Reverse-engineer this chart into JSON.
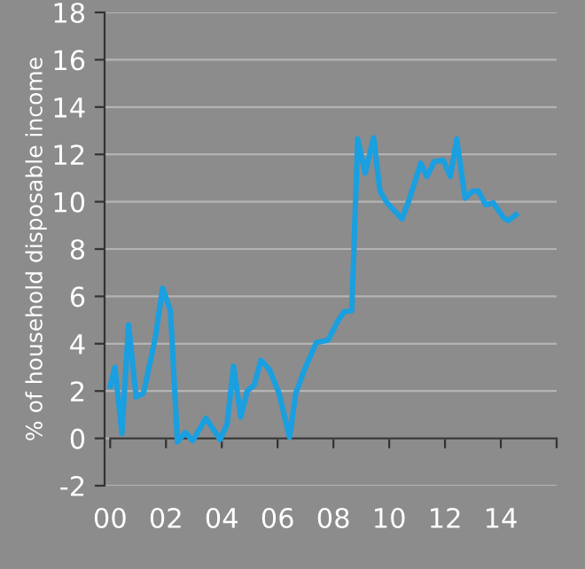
{
  "chart_data": {
    "type": "line",
    "ylabel": "% of household disposable income",
    "xlim": [
      -0.2,
      16
    ],
    "ylim": [
      -2,
      18
    ],
    "xticks": [
      {
        "value": 0,
        "label": "00"
      },
      {
        "value": 2,
        "label": "02"
      },
      {
        "value": 4,
        "label": "04"
      },
      {
        "value": 6,
        "label": "06"
      },
      {
        "value": 8,
        "label": "08"
      },
      {
        "value": 10,
        "label": "10"
      },
      {
        "value": 12,
        "label": "12"
      },
      {
        "value": 14,
        "label": "14"
      },
      {
        "value": 16,
        "label": null
      }
    ],
    "yticks": [
      -2,
      0,
      2,
      4,
      6,
      8,
      10,
      12,
      14,
      16,
      18
    ],
    "grid": "y",
    "legend": false,
    "marker": "none",
    "line_style": "solid",
    "series": [
      {
        "color": "#1a9fe0",
        "x": [
          0,
          0.17,
          0.42,
          0.66,
          0.93,
          1.19,
          1.61,
          1.88,
          2.16,
          2.41,
          2.69,
          2.96,
          3.43,
          3.94,
          4.19,
          4.42,
          4.68,
          4.91,
          5.16,
          5.4,
          5.71,
          6.05,
          6.43,
          6.65,
          6.96,
          7.39,
          7.81,
          8.13,
          8.38,
          8.66,
          8.87,
          9.14,
          9.44,
          9.67,
          9.92,
          10.46,
          10.71,
          11.13,
          11.35,
          11.62,
          11.94,
          12.19,
          12.42,
          12.72,
          13.0,
          13.2,
          13.46,
          13.73,
          14.1,
          14.27,
          14.54
        ],
        "values": [
          2.2,
          3.0,
          0.2,
          4.8,
          1.75,
          1.9,
          4.2,
          6.35,
          5.4,
          -0.15,
          0.25,
          -0.1,
          0.85,
          -0.05,
          0.6,
          3.05,
          0.9,
          2.0,
          2.25,
          3.3,
          2.9,
          1.9,
          0.05,
          1.9,
          2.9,
          4.05,
          4.15,
          4.9,
          5.35,
          5.4,
          12.65,
          11.2,
          12.7,
          10.45,
          9.95,
          9.27,
          10.07,
          11.63,
          11.07,
          11.7,
          11.75,
          11.07,
          12.65,
          10.15,
          10.45,
          10.45,
          9.87,
          9.95,
          9.32,
          9.2,
          9.45
        ]
      }
    ]
  }
}
